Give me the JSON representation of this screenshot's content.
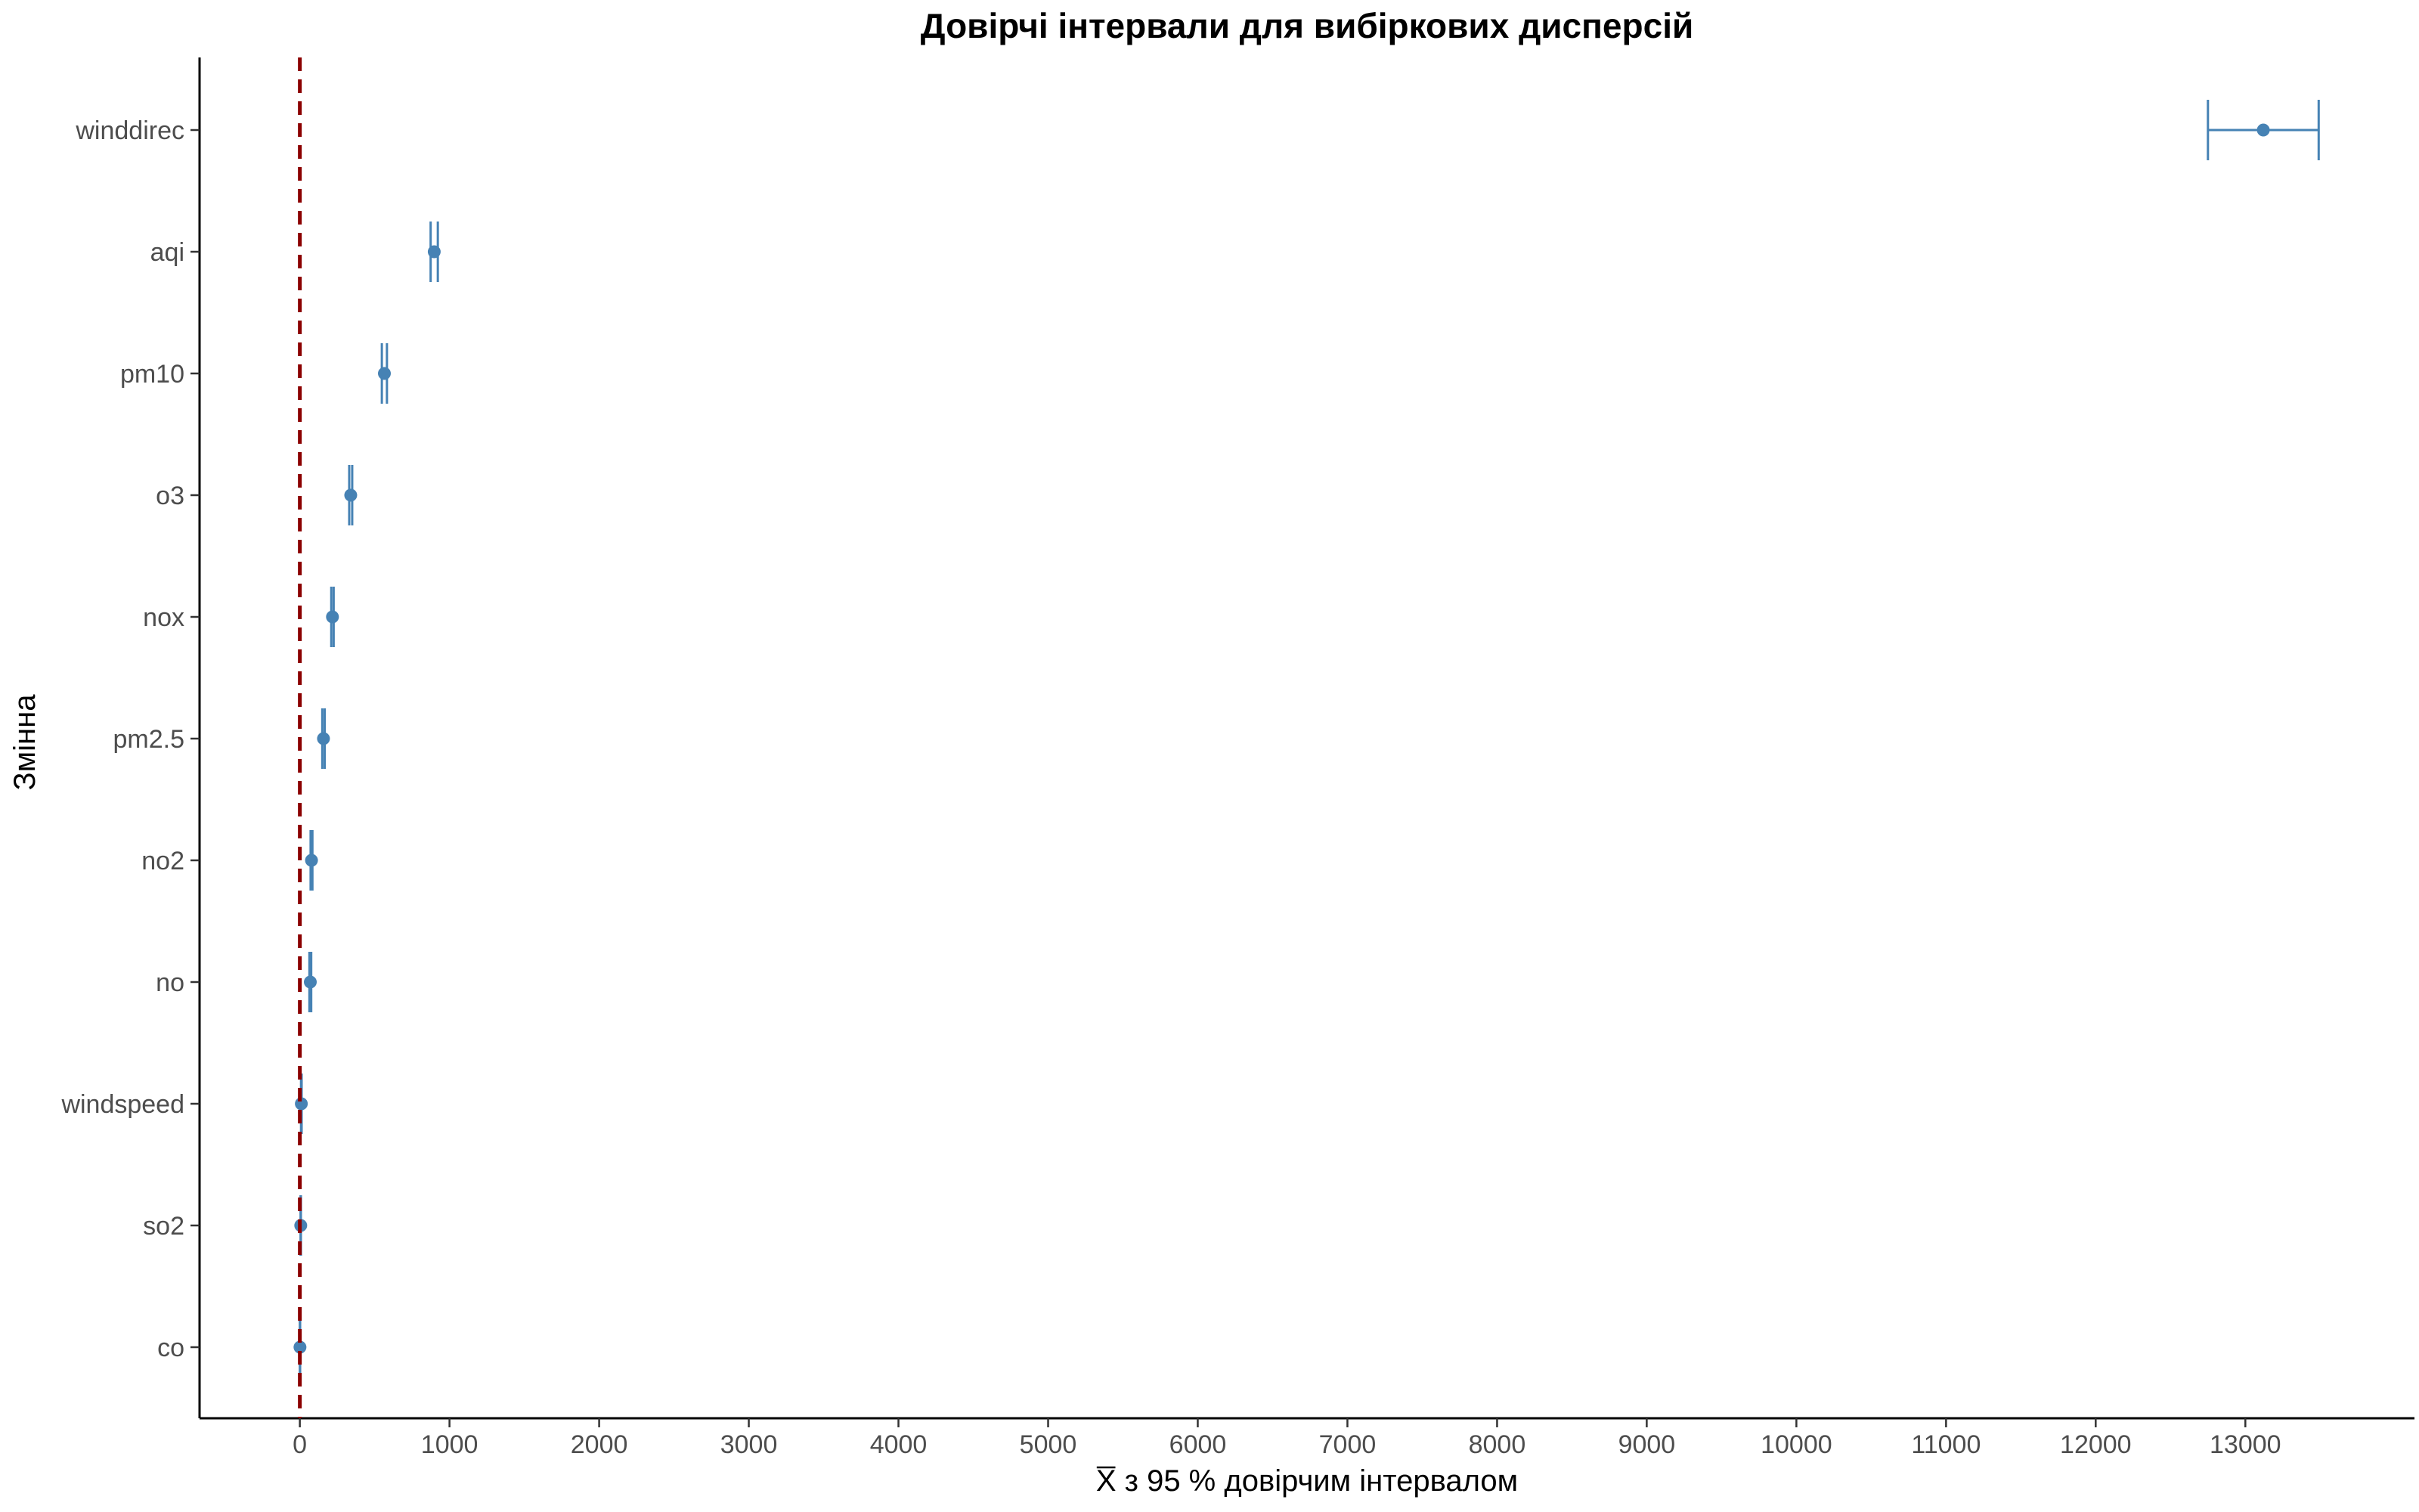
{
  "chart_data": {
    "type": "errorbar",
    "title": "Довірчі інтервали для вибіркових дисперсій",
    "xlabel_bar": "X",
    "xlabel_rest": " з 95 %  довірчим інтервалом",
    "ylabel": "Змінна",
    "xlim": [
      -670,
      14130
    ],
    "xticks": [
      0,
      1000,
      2000,
      3000,
      4000,
      5000,
      6000,
      7000,
      8000,
      9000,
      10000,
      11000,
      12000,
      13000
    ],
    "reference_line": {
      "x": 0,
      "color": "#8b0000",
      "style": "dashed"
    },
    "series_color": "#4682b4",
    "grid": false,
    "points": [
      {
        "label": "co",
        "value": 1,
        "low": 0,
        "high": 2
      },
      {
        "label": "so2",
        "value": 6,
        "low": 5,
        "high": 7
      },
      {
        "label": "windspeed",
        "value": 10,
        "low": 8,
        "high": 12
      },
      {
        "label": "no",
        "value": 70,
        "low": 64,
        "high": 76
      },
      {
        "label": "no2",
        "value": 78,
        "low": 72,
        "high": 84
      },
      {
        "label": "pm2.5",
        "value": 158,
        "low": 150,
        "high": 166
      },
      {
        "label": "nox",
        "value": 218,
        "low": 210,
        "high": 226
      },
      {
        "label": "o3",
        "value": 340,
        "low": 330,
        "high": 350
      },
      {
        "label": "pm10",
        "value": 565,
        "low": 548,
        "high": 582
      },
      {
        "label": "aqi",
        "value": 898,
        "low": 874,
        "high": 922
      },
      {
        "label": "winddirec",
        "value": 13120,
        "low": 12750,
        "high": 13490
      }
    ]
  }
}
